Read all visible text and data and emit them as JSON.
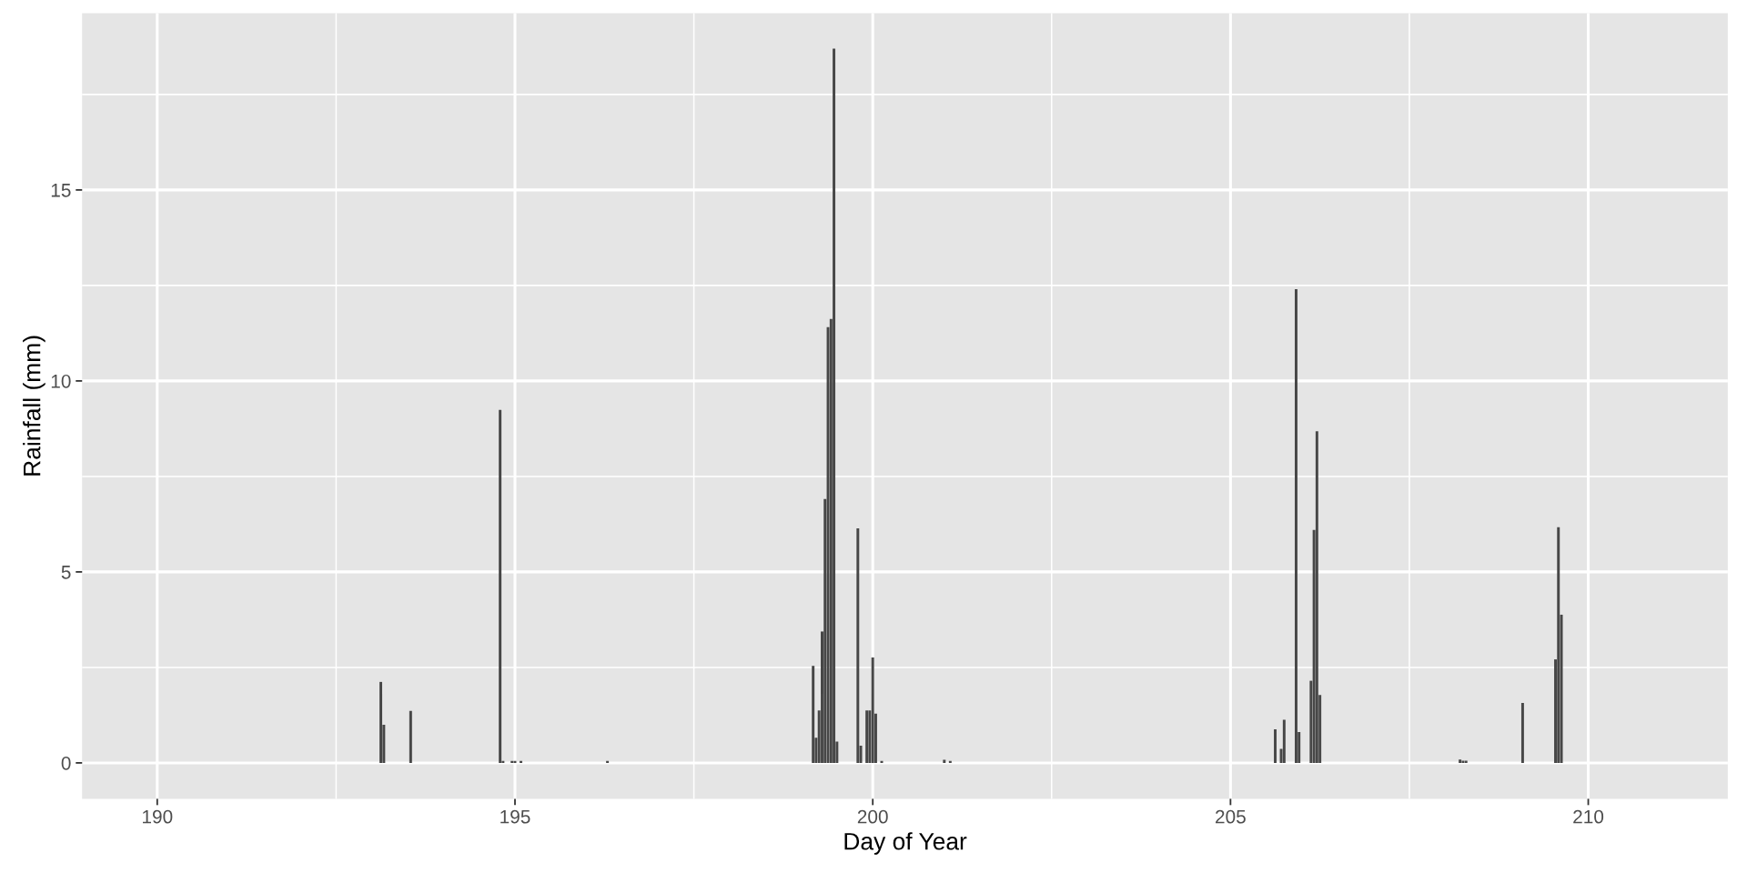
{
  "chart_data": {
    "type": "bar",
    "xlabel": "Day of Year",
    "ylabel": "Rainfall (mm)",
    "x": [
      193.125,
      193.167,
      193.542,
      194.792,
      194.833,
      194.958,
      195.0,
      195.083,
      196.292,
      199.167,
      199.208,
      199.25,
      199.292,
      199.333,
      199.375,
      199.417,
      199.458,
      199.5,
      199.792,
      199.833,
      199.917,
      199.958,
      200.0,
      200.042,
      200.125,
      201.0,
      201.083,
      205.625,
      205.708,
      205.75,
      205.917,
      205.958,
      206.125,
      206.167,
      206.208,
      206.25,
      208.208,
      208.25,
      208.292,
      209.083,
      209.542,
      209.583,
      209.625
    ],
    "values": [
      2.12,
      1.0,
      1.36,
      9.24,
      0.05,
      0.05,
      0.05,
      0.05,
      0.05,
      2.54,
      0.66,
      1.37,
      3.44,
      6.91,
      11.41,
      11.62,
      18.7,
      0.56,
      6.14,
      0.45,
      1.37,
      1.37,
      2.76,
      1.29,
      0.05,
      0.08,
      0.05,
      0.88,
      0.37,
      1.13,
      12.4,
      0.81,
      2.15,
      6.1,
      8.68,
      1.78,
      0.09,
      0.06,
      0.06,
      1.57,
      2.71,
      6.17,
      3.88
    ],
    "color": "#474747",
    "xlim": [
      188.95,
      211.95
    ],
    "xticks": [
      190,
      195,
      200,
      205,
      210
    ],
    "ylim": [
      -0.94,
      19.63
    ],
    "yticks": [
      0,
      5,
      10,
      15
    ],
    "grid": true
  }
}
